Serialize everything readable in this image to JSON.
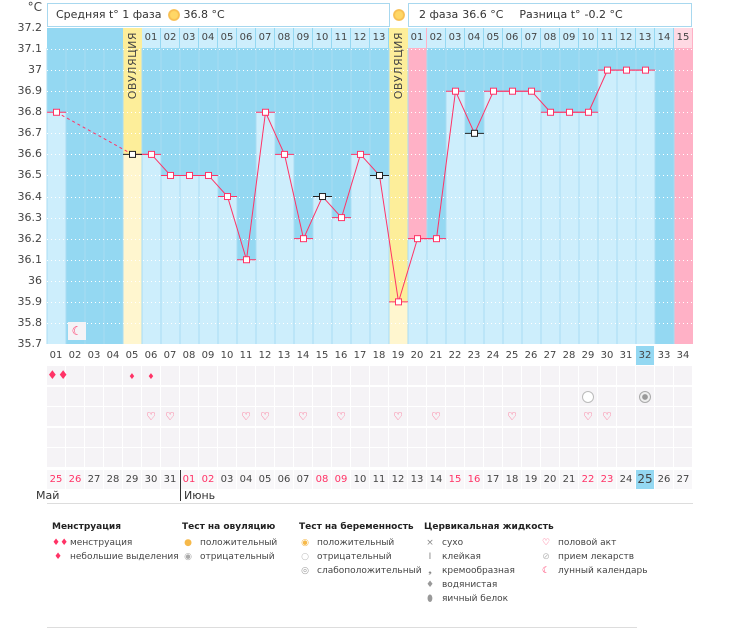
{
  "chart_data": {
    "type": "bar",
    "yunit": "°C",
    "ylim": [
      35.7,
      37.2
    ],
    "yticks": [
      "37.2",
      "37.1",
      "37",
      "36.9",
      "36.8",
      "36.7",
      "36.6",
      "36.5",
      "36.4",
      "36.3",
      "36.2",
      "36.1",
      "36",
      "35.9",
      "35.8",
      "35.7"
    ],
    "cycle_days": [
      "01",
      "02",
      "03",
      "04",
      "05",
      "06",
      "07",
      "08",
      "09",
      "10",
      "11",
      "12",
      "13",
      "14",
      "15",
      "16",
      "17",
      "18",
      "19",
      "20",
      "21",
      "22",
      "23",
      "24",
      "25",
      "26",
      "27",
      "28",
      "29",
      "30",
      "31",
      "32",
      "33",
      "34"
    ],
    "temperatures": [
      36.8,
      null,
      null,
      null,
      36.6,
      36.6,
      36.5,
      36.5,
      36.5,
      36.4,
      36.1,
      36.8,
      36.6,
      36.2,
      36.4,
      36.3,
      36.6,
      36.5,
      35.9,
      36.2,
      36.2,
      36.9,
      36.7,
      36.9,
      36.9,
      36.9,
      36.8,
      36.8,
      36.8,
      37.0,
      37.0,
      37.0,
      null,
      null
    ],
    "excluded_days": [
      5,
      15,
      18,
      23
    ],
    "ovulation_days": [
      5,
      19
    ],
    "ovulation_label": "ОВУЛЯЦИЯ",
    "menstruation_days": [
      20,
      34
    ],
    "current_day": 32,
    "phase1_days": [
      "01",
      "02",
      "03",
      "04",
      "05",
      "06",
      "07",
      "08",
      "09",
      "10",
      "11",
      "12",
      "13"
    ],
    "phase2_days": [
      "01",
      "02",
      "03",
      "04",
      "05",
      "06",
      "07",
      "08",
      "09",
      "10",
      "11",
      "12",
      "13",
      "14",
      "15"
    ],
    "dates": [
      "25",
      "26",
      "27",
      "28",
      "29",
      "30",
      "31",
      "01",
      "02",
      "03",
      "04",
      "05",
      "06",
      "07",
      "08",
      "09",
      "10",
      "11",
      "12",
      "13",
      "14",
      "15",
      "16",
      "17",
      "18",
      "19",
      "20",
      "21",
      "22",
      "23",
      "24",
      "25",
      "26",
      "27"
    ],
    "weekend_days": [
      1,
      2,
      8,
      9,
      15,
      16,
      22,
      23,
      29,
      30
    ],
    "months": [
      "Май",
      "Июнь"
    ],
    "colors": {
      "line": "#ff3366",
      "bar": "#cdeefc",
      "bg": "#94d8f2",
      "ovulation": "#fdee9a",
      "menstruation": "#ffb1c6",
      "weekend": "#ff3366"
    }
  },
  "header": {
    "phase1_label": "Средняя t° 1 фаза",
    "phase1_value": "36.8 °C",
    "phase2_label": "2 фаза",
    "phase2_value": "36.6 °C",
    "diff_label": "Разница t°",
    "diff_value": "-0.2 °C"
  },
  "markers": {
    "menstruation_heavy": [
      1
    ],
    "menstruation_light": [
      5,
      6
    ],
    "pregnancy_negative": [
      29
    ],
    "pregnancy_weak": [
      32
    ],
    "intercourse": [
      6,
      7,
      11,
      12,
      14,
      16,
      19,
      21,
      25,
      29,
      30
    ],
    "lunar": [
      2
    ]
  },
  "legend": {
    "groups": [
      {
        "title": "Менструация",
        "items": [
          {
            "icon": "blood-drops-icon",
            "label": "менструация"
          },
          {
            "icon": "blood-drop-icon",
            "label": "небольшие выделения"
          }
        ]
      },
      {
        "title": "Тест на овуляцию",
        "items": [
          {
            "icon": "ovulation-positive-icon",
            "label": "положительный"
          },
          {
            "icon": "ovulation-negative-icon",
            "label": "отрицательный"
          }
        ]
      },
      {
        "title": "Тест на беременность",
        "items": [
          {
            "icon": "pregnancy-positive-icon",
            "label": "положительный"
          },
          {
            "icon": "pregnancy-negative-icon",
            "label": "отрицательный"
          },
          {
            "icon": "pregnancy-weak-icon",
            "label": "слабоположительный"
          }
        ]
      },
      {
        "title": "Цервикальная жидкость",
        "items": [
          {
            "icon": "dry-icon",
            "label": "сухо"
          },
          {
            "icon": "sticky-icon",
            "label": "клейкая"
          },
          {
            "icon": "creamy-icon",
            "label": "кремообразная"
          },
          {
            "icon": "watery-icon",
            "label": "водянистая"
          },
          {
            "icon": "egg-white-icon",
            "label": "яичный белок"
          }
        ]
      },
      {
        "title": "",
        "items": [
          {
            "icon": "heart-icon",
            "label": "половой акт"
          },
          {
            "icon": "pill-icon",
            "label": "прием лекарств"
          },
          {
            "icon": "moon-icon",
            "label": "лунный календарь"
          }
        ]
      }
    ]
  }
}
